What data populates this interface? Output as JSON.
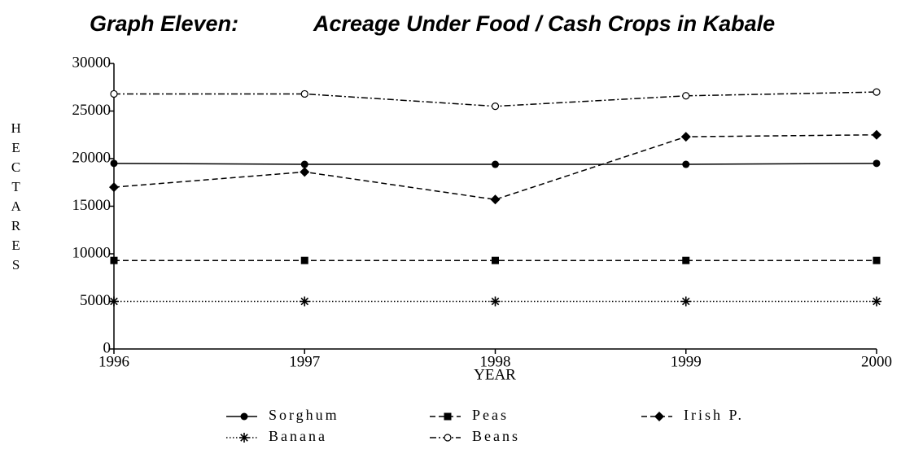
{
  "chart_data": {
    "type": "line",
    "title_prefix": "Graph Eleven:",
    "title": "Acreage Under Food / Cash Crops in Kabale",
    "x_label": "YEAR",
    "y_label": "HECTARES",
    "x": [
      1996,
      1997,
      1998,
      1999,
      2000
    ],
    "xlim": [
      1996,
      2000
    ],
    "xticks": [
      1996,
      1997,
      1998,
      1999,
      2000
    ],
    "ylim": [
      0,
      30000
    ],
    "yticks": [
      0,
      5000,
      10000,
      15000,
      20000,
      25000,
      30000
    ],
    "grid": false,
    "legend": "bottom",
    "series": [
      {
        "name": "Sorghum",
        "color": "#000000",
        "marker": "circle",
        "dash": "solid",
        "values": [
          19500,
          19400,
          19400,
          19400,
          19500
        ]
      },
      {
        "name": "Peas",
        "color": "#000000",
        "marker": "square",
        "dash": "dashed",
        "values": [
          9300,
          9300,
          9300,
          9300,
          9300
        ]
      },
      {
        "name": "Irish P.",
        "color": "#000000",
        "marker": "diamond",
        "dash": "dashed",
        "values": [
          17000,
          18600,
          15700,
          22300,
          22500
        ]
      },
      {
        "name": "Banana",
        "color": "#000000",
        "marker": "asterisk",
        "dash": "dotted",
        "values": [
          5000,
          5000,
          5000,
          5000,
          5000
        ]
      },
      {
        "name": "Beans",
        "color": "#000000",
        "marker": "open-circle",
        "dash": "dashdot",
        "values": [
          26800,
          26800,
          25500,
          26600,
          27000
        ]
      }
    ]
  }
}
